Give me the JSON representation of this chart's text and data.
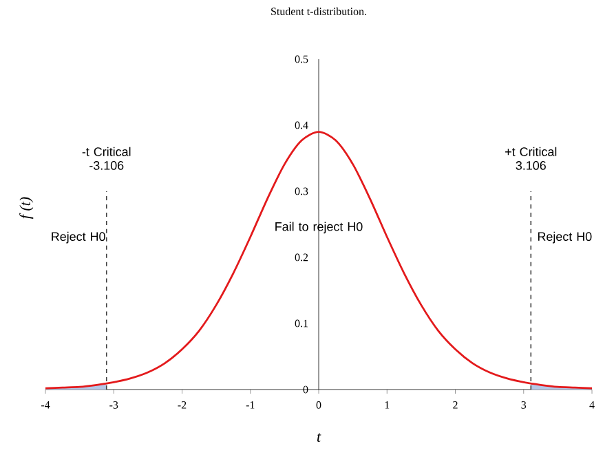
{
  "chart_data": {
    "type": "line",
    "title": "Student t-distribution.",
    "xlabel": "t",
    "ylabel": "f (t)",
    "xlim": [
      -4,
      4
    ],
    "xticks": [
      -4,
      -3,
      -2,
      -1,
      0,
      1,
      2,
      3,
      4
    ],
    "ylim": [
      0,
      0.5
    ],
    "yticks": [
      0,
      0.1,
      0.2,
      0.3,
      0.4,
      0.5
    ],
    "series": [
      {
        "type": "area",
        "color": "#b4c7e7",
        "x": [
          -4,
          -3.75,
          -3.5,
          -3.25,
          -3.106
        ],
        "values": [
          0.002,
          0.003,
          0.004,
          0.007,
          0.009
        ]
      },
      {
        "type": "area",
        "color": "#b4c7e7",
        "x": [
          3.106,
          3.25,
          3.5,
          3.75,
          4
        ],
        "values": [
          0.009,
          0.007,
          0.004,
          0.003,
          0.002
        ]
      },
      {
        "color": "#e31a1c",
        "x": [
          -4,
          -3.75,
          -3.5,
          -3.25,
          -3,
          -2.75,
          -2.5,
          -2.25,
          -2,
          -1.75,
          -1.5,
          -1.25,
          -1,
          -0.75,
          -0.5,
          -0.25,
          0,
          0.25,
          0.5,
          0.75,
          1,
          1.25,
          1.5,
          1.75,
          2,
          2.25,
          2.5,
          2.75,
          3,
          3.25,
          3.5,
          3.75,
          4
        ],
        "values": [
          0.002,
          0.003,
          0.004,
          0.007,
          0.011,
          0.017,
          0.026,
          0.04,
          0.061,
          0.089,
          0.128,
          0.176,
          0.231,
          0.289,
          0.341,
          0.377,
          0.39,
          0.377,
          0.341,
          0.289,
          0.231,
          0.176,
          0.128,
          0.089,
          0.061,
          0.04,
          0.026,
          0.017,
          0.011,
          0.007,
          0.004,
          0.003,
          0.002
        ]
      }
    ],
    "ref_lines": [
      {
        "axis": "x",
        "value": -3.106,
        "label": "-t Critical -3.106",
        "color": "#404040",
        "line_style": "dashed"
      },
      {
        "axis": "x",
        "value": 3.106,
        "label": "+t Critical 3.106",
        "color": "#404040",
        "line_style": "dashed"
      }
    ],
    "annotations": [
      "Reject H0",
      "Fail to reject H0",
      "Reject H0"
    ]
  }
}
